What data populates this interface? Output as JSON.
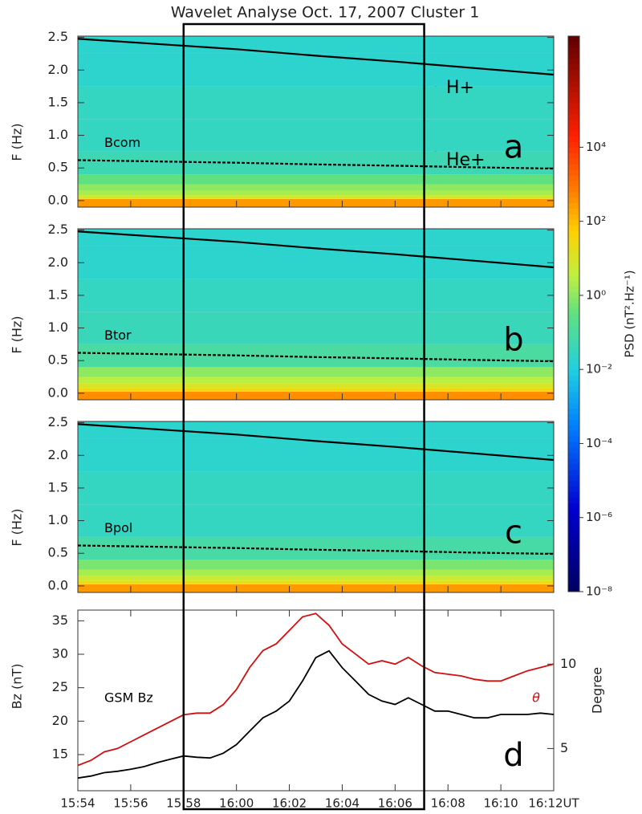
{
  "title": "Wavelet Analyse   Oct. 17, 2007   Cluster 1",
  "colorbar": {
    "label": "PSD (nT².Hz⁻¹)",
    "lim": [
      1e-08,
      10000000.0
    ],
    "ticks": [
      {
        "value": 10000.0,
        "label": "10⁴"
      },
      {
        "value": 100,
        "label": "10²"
      },
      {
        "value": 1,
        "label": "10⁰"
      },
      {
        "value": 0.01,
        "label": "10⁻²"
      },
      {
        "value": 0.0001,
        "label": "10⁻⁴"
      },
      {
        "value": 1e-06,
        "label": "10⁻⁶"
      },
      {
        "value": 1e-08,
        "label": "10⁻⁸"
      }
    ]
  },
  "highlight_interval": [
    958,
    967.1
  ],
  "chart_data": [
    {
      "type": "heatmap",
      "label": "Bcom",
      "letter": "a",
      "ylabel": "F (Hz)",
      "xlim": [
        954,
        972
      ],
      "ylim": [
        -0.1,
        2.52
      ],
      "yticks": [
        {
          "value": 0,
          "label": "0.0"
        },
        0.5,
        {
          "value": 1,
          "label": "1.0"
        },
        1.5,
        {
          "value": 2,
          "label": "2.0"
        },
        2.5
      ],
      "frequencies": [
        0,
        0.05,
        0.1,
        0.2,
        0.3,
        0.5,
        1.0,
        1.5,
        2.0,
        2.5
      ],
      "psd": [
        300,
        8,
        2,
        1,
        0.3,
        0.05,
        0.03,
        0.03,
        0.02,
        0.02
      ],
      "x": [
        954,
        957,
        960,
        963,
        966,
        969,
        972
      ],
      "lines": [
        {
          "name": "H+",
          "style": "solid",
          "values": [
            2.48,
            2.4,
            2.32,
            2.22,
            2.13,
            2.03,
            1.93
          ]
        },
        {
          "name": "He+",
          "style": "dashed",
          "values": [
            0.62,
            0.6,
            0.58,
            0.555,
            0.535,
            0.51,
            0.49
          ]
        }
      ]
    },
    {
      "type": "heatmap",
      "label": "Btor",
      "letter": "b",
      "ylabel": "F (Hz)",
      "xlim": [
        954,
        972
      ],
      "ylim": [
        -0.1,
        2.52
      ],
      "yticks": [
        {
          "value": 0,
          "label": "0.0"
        },
        0.5,
        {
          "value": 1,
          "label": "1.0"
        },
        1.5,
        {
          "value": 2,
          "label": "2.0"
        },
        2.5
      ],
      "frequencies": [
        0,
        0.05,
        0.1,
        0.2,
        0.3,
        0.5,
        1.0,
        1.5,
        2.0,
        2.5
      ],
      "psd": [
        400,
        30,
        10,
        3,
        1,
        0.1,
        0.04,
        0.03,
        0.02,
        0.02
      ],
      "x": [
        954,
        957,
        960,
        963,
        966,
        969,
        972
      ],
      "lines": [
        {
          "style": "solid",
          "values": [
            2.48,
            2.4,
            2.32,
            2.22,
            2.13,
            2.03,
            1.93
          ]
        },
        {
          "style": "dashed",
          "values": [
            0.62,
            0.6,
            0.58,
            0.555,
            0.535,
            0.51,
            0.49
          ]
        }
      ]
    },
    {
      "type": "heatmap",
      "label": "Bpol",
      "letter": "c",
      "ylabel": "F (Hz)",
      "xlim": [
        954,
        972
      ],
      "ylim": [
        -0.1,
        2.52
      ],
      "yticks": [
        {
          "value": 0,
          "label": "0.0"
        },
        0.5,
        {
          "value": 1,
          "label": "1.0"
        },
        1.5,
        {
          "value": 2,
          "label": "2.0"
        },
        2.5
      ],
      "frequencies": [
        0,
        0.05,
        0.1,
        0.2,
        0.3,
        0.5,
        1.0,
        1.5,
        2.0,
        2.5
      ],
      "psd": [
        300,
        20,
        6,
        2,
        0.6,
        0.08,
        0.03,
        0.03,
        0.02,
        0.02
      ],
      "x": [
        954,
        957,
        960,
        963,
        966,
        969,
        972
      ],
      "lines": [
        {
          "style": "solid",
          "values": [
            2.48,
            2.4,
            2.32,
            2.22,
            2.13,
            2.03,
            1.93
          ]
        },
        {
          "style": "dashed",
          "values": [
            0.62,
            0.6,
            0.58,
            0.555,
            0.535,
            0.51,
            0.49
          ]
        }
      ]
    },
    {
      "type": "line",
      "letter": "d",
      "ylabel": "Bz (nT)",
      "y2label": "Degree",
      "xlim": [
        954,
        972
      ],
      "ylim": [
        9.6,
        36.6
      ],
      "yticks": [
        15,
        20,
        25,
        30,
        35
      ],
      "y2lim": [
        2.5,
        13.2
      ],
      "y2ticks": [
        5,
        10
      ],
      "xticks": [
        {
          "value": 954,
          "label": "15:54"
        },
        {
          "value": 956,
          "label": "15:56"
        },
        {
          "value": 958,
          "label": "15:58"
        },
        {
          "value": 960,
          "label": "16:00"
        },
        {
          "value": 962,
          "label": "16:02"
        },
        {
          "value": 964,
          "label": "16:04"
        },
        {
          "value": 966,
          "label": "16:06"
        },
        {
          "value": 968,
          "label": "16:08"
        },
        {
          "value": 970,
          "label": "16:10"
        },
        {
          "value": 972,
          "label": "16:12UT"
        }
      ],
      "x": [
        954,
        954.5,
        955,
        955.5,
        956,
        956.5,
        957,
        957.5,
        958,
        958.5,
        959,
        959.5,
        960,
        960.5,
        961,
        961.5,
        962,
        962.5,
        963,
        963.5,
        964,
        964.5,
        965,
        965.5,
        966,
        966.5,
        967,
        967.5,
        968,
        968.5,
        969,
        969.5,
        970,
        970.5,
        971,
        971.5,
        972
      ],
      "series": [
        {
          "name": "GSM Bz",
          "color": "#000000",
          "values": [
            11.5,
            11.8,
            12.3,
            12.5,
            12.8,
            13.2,
            13.8,
            14.3,
            14.8,
            14.6,
            14.5,
            15.2,
            16.5,
            18.5,
            20.5,
            21.5,
            23,
            26,
            29.5,
            30.5,
            28,
            26,
            24,
            23,
            22.5,
            23.5,
            22.5,
            21.5,
            21.5,
            21,
            20.5,
            20.5,
            21,
            21,
            21,
            21.2,
            21
          ]
        },
        {
          "name": "θ",
          "color": "#d01010",
          "axis": "y2",
          "values": [
            4.0,
            4.3,
            4.8,
            5.0,
            5.4,
            5.8,
            6.2,
            6.6,
            7.0,
            7.1,
            7.1,
            7.6,
            8.5,
            9.8,
            10.8,
            11.2,
            12.0,
            12.8,
            13.0,
            12.3,
            11.2,
            10.6,
            10.0,
            10.2,
            10.0,
            10.4,
            9.9,
            9.5,
            9.4,
            9.3,
            9.1,
            9.0,
            9.0,
            9.3,
            9.6,
            9.8,
            10.0
          ]
        }
      ]
    }
  ]
}
